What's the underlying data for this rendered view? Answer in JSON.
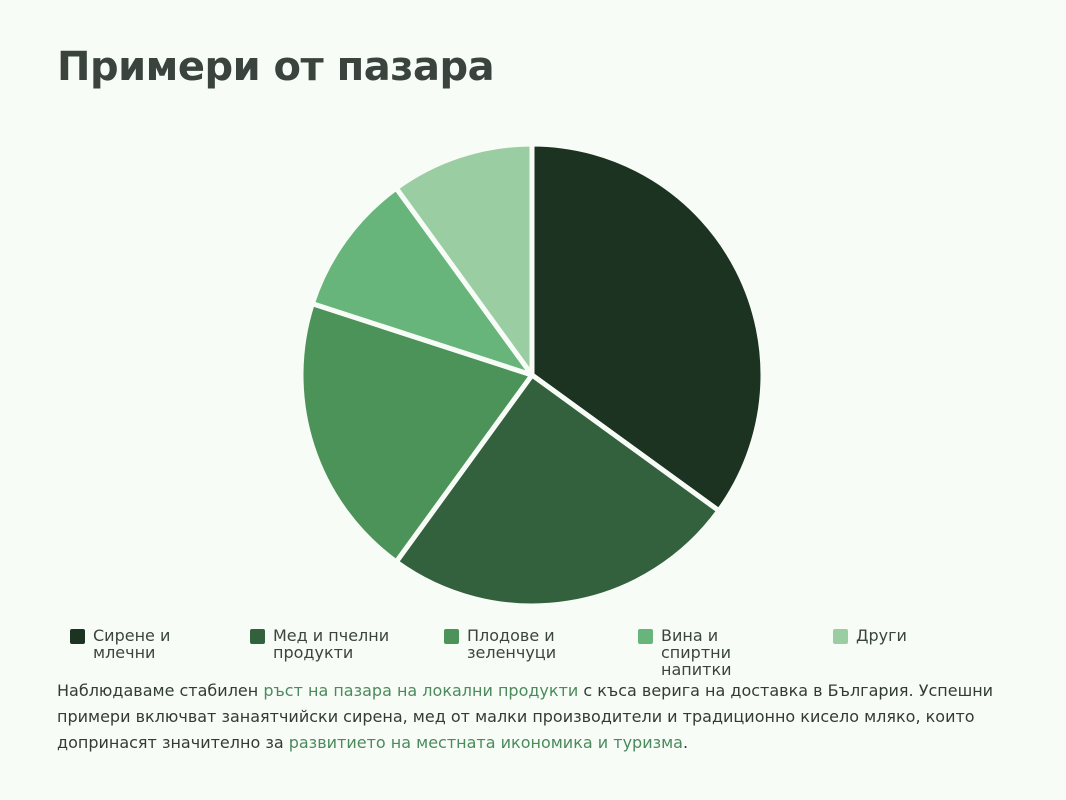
{
  "chart_data": {
    "type": "pie",
    "title": "Примери от пазара",
    "categories": [
      "Сирене и млечни",
      "Мед и пчелни продукти",
      "Плодове и зеленчуци",
      "Вина и спиртни напитки",
      "Други"
    ],
    "values": [
      35,
      25,
      20,
      10,
      10
    ],
    "colors": [
      "#1b3320",
      "#33613d",
      "#4b9358",
      "#68b57b",
      "#9bcda3"
    ],
    "legend_position": "bottom"
  },
  "description": {
    "part1": "Наблюдаваме стабилен ",
    "highlight1": "ръст на пазара на локални продукти",
    "part2": " с къса верига на доставка в България. Успешни примери включват занаятчийски сирена, мед от малки производители и традиционно кисело мляко, които допринасят значително за ",
    "highlight2": "развитието на местната икономика и туризма",
    "part3": "."
  }
}
